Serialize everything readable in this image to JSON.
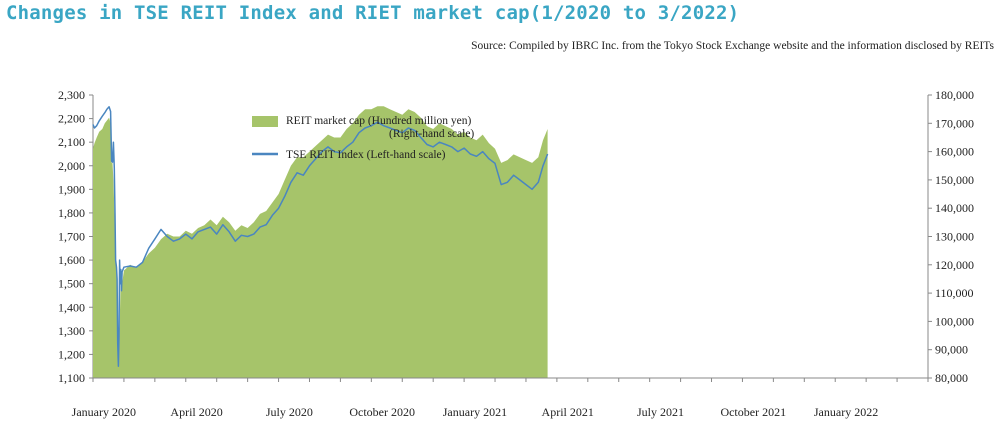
{
  "title": "Changes in TSE REIT Index and RIET market cap(1/2020 to 3/2022)",
  "source": "Source: Compiled by IBRC Inc. from the Tokyo Stock Exchange website and the information disclosed by REITs",
  "colors": {
    "area": "#a6c46a",
    "line": "#4a86c0",
    "title": "#3aa6c4"
  },
  "chart_data": {
    "type": "area",
    "x_labels": [
      "January 2020",
      "April 2020",
      "July 2020",
      "October 2020",
      "January 2021",
      "April 2021",
      "July 2021",
      "October 2021",
      "January 2022"
    ],
    "x_range": [
      "2020-01",
      "2022-03"
    ],
    "ylim_left": [
      1100,
      2300
    ],
    "ylim_right": [
      80000,
      180000
    ],
    "left_ticks": [
      "2,300",
      "2,200",
      "2,100",
      "2,000",
      "1,900",
      "1,800",
      "1,700",
      "1,600",
      "1,500",
      "1,400",
      "1,300",
      "1,200",
      "1,100"
    ],
    "right_ticks": [
      "180,000",
      "170,000",
      "160,000",
      "150,000",
      "140,000",
      "130,000",
      "120,000",
      "110,000",
      "100,000",
      "90,000",
      "80,000"
    ],
    "legend": {
      "area_label_line1": "REIT market cap (Hundred million yen)",
      "area_label_line2": "(Right-hand scale)",
      "line_label": "TSE REIT Index (Left-hand scale)"
    },
    "series": [
      {
        "name": "REIT market cap (Hundred million yen)",
        "axis": "right",
        "points": [
          [
            0.0,
            161000
          ],
          [
            0.05,
            163000
          ],
          [
            0.12,
            165000
          ],
          [
            0.2,
            167000
          ],
          [
            0.3,
            168000
          ],
          [
            0.38,
            170000
          ],
          [
            0.45,
            171000
          ],
          [
            0.52,
            172000
          ],
          [
            0.57,
            170000
          ],
          [
            0.6,
            156000
          ],
          [
            0.63,
            156000
          ],
          [
            0.66,
            150000
          ],
          [
            0.69,
            140000
          ],
          [
            0.73,
            124000
          ],
          [
            0.78,
            115000
          ],
          [
            0.82,
            90000
          ],
          [
            0.86,
            98000
          ],
          [
            0.9,
            116000
          ],
          [
            0.95,
            114000
          ],
          [
            1.0,
            118000
          ],
          [
            1.2,
            120000
          ],
          [
            1.4,
            119000
          ],
          [
            1.6,
            121000
          ],
          [
            1.8,
            124000
          ],
          [
            2.0,
            126000
          ],
          [
            2.2,
            129000
          ],
          [
            2.4,
            131000
          ],
          [
            2.6,
            130000
          ],
          [
            2.8,
            130000
          ],
          [
            3.0,
            132000
          ],
          [
            3.2,
            131000
          ],
          [
            3.4,
            133000
          ],
          [
            3.6,
            134000
          ],
          [
            3.8,
            136000
          ],
          [
            4.0,
            134000
          ],
          [
            4.2,
            137000
          ],
          [
            4.4,
            135000
          ],
          [
            4.6,
            132000
          ],
          [
            4.8,
            134000
          ],
          [
            5.0,
            133000
          ],
          [
            5.2,
            135000
          ],
          [
            5.4,
            138000
          ],
          [
            5.6,
            139000
          ],
          [
            5.8,
            142000
          ],
          [
            6.0,
            145000
          ],
          [
            6.2,
            150000
          ],
          [
            6.4,
            155000
          ],
          [
            6.6,
            158000
          ],
          [
            6.8,
            158000
          ],
          [
            7.0,
            160000
          ],
          [
            7.2,
            162000
          ],
          [
            7.4,
            164000
          ],
          [
            7.6,
            166000
          ],
          [
            7.8,
            165000
          ],
          [
            8.0,
            165000
          ],
          [
            8.2,
            168000
          ],
          [
            8.4,
            170000
          ],
          [
            8.6,
            173000
          ],
          [
            8.8,
            175000
          ],
          [
            9.0,
            175000
          ],
          [
            9.2,
            176000
          ],
          [
            9.4,
            176000
          ],
          [
            9.6,
            175000
          ],
          [
            9.8,
            174000
          ],
          [
            10.0,
            173000
          ],
          [
            10.2,
            175000
          ],
          [
            10.4,
            174000
          ],
          [
            10.6,
            172000
          ],
          [
            10.8,
            169000
          ],
          [
            11.0,
            168000
          ],
          [
            11.2,
            170000
          ],
          [
            11.4,
            169000
          ],
          [
            11.6,
            168000
          ],
          [
            11.8,
            166000
          ],
          [
            12.0,
            167000
          ],
          [
            12.2,
            165000
          ],
          [
            12.4,
            164000
          ],
          [
            12.6,
            166000
          ],
          [
            12.8,
            163000
          ],
          [
            13.0,
            161000
          ],
          [
            13.2,
            156000
          ],
          [
            13.4,
            157000
          ],
          [
            13.6,
            159000
          ],
          [
            13.8,
            158000
          ],
          [
            14.0,
            157000
          ],
          [
            14.2,
            156000
          ],
          [
            14.4,
            158000
          ],
          [
            14.55,
            164000
          ],
          [
            14.7,
            168000
          ]
        ]
      },
      {
        "name": "TSE REIT Index (Left-hand scale)",
        "axis": "left",
        "points": [
          [
            0.0,
            2175
          ],
          [
            0.05,
            2160
          ],
          [
            0.12,
            2170
          ],
          [
            0.2,
            2190
          ],
          [
            0.3,
            2210
          ],
          [
            0.38,
            2225
          ],
          [
            0.45,
            2240
          ],
          [
            0.52,
            2250
          ],
          [
            0.57,
            2230
          ],
          [
            0.6,
            2020
          ],
          [
            0.63,
            2015
          ],
          [
            0.66,
            2100
          ],
          [
            0.69,
            1990
          ],
          [
            0.71,
            1800
          ],
          [
            0.73,
            1600
          ],
          [
            0.76,
            1570
          ],
          [
            0.78,
            1520
          ],
          [
            0.8,
            1250
          ],
          [
            0.82,
            1150
          ],
          [
            0.84,
            1280
          ],
          [
            0.86,
            1600
          ],
          [
            0.88,
            1500
          ],
          [
            0.9,
            1560
          ],
          [
            0.92,
            1470
          ],
          [
            0.94,
            1550
          ],
          [
            1.0,
            1570
          ],
          [
            1.2,
            1575
          ],
          [
            1.4,
            1570
          ],
          [
            1.6,
            1590
          ],
          [
            1.8,
            1650
          ],
          [
            2.0,
            1690
          ],
          [
            2.2,
            1730
          ],
          [
            2.4,
            1700
          ],
          [
            2.6,
            1680
          ],
          [
            2.8,
            1690
          ],
          [
            3.0,
            1710
          ],
          [
            3.2,
            1690
          ],
          [
            3.4,
            1720
          ],
          [
            3.6,
            1730
          ],
          [
            3.8,
            1740
          ],
          [
            4.0,
            1710
          ],
          [
            4.2,
            1750
          ],
          [
            4.4,
            1720
          ],
          [
            4.6,
            1680
          ],
          [
            4.8,
            1705
          ],
          [
            5.0,
            1700
          ],
          [
            5.2,
            1710
          ],
          [
            5.4,
            1740
          ],
          [
            5.6,
            1750
          ],
          [
            5.8,
            1790
          ],
          [
            6.0,
            1820
          ],
          [
            6.2,
            1870
          ],
          [
            6.4,
            1930
          ],
          [
            6.6,
            1970
          ],
          [
            6.8,
            1960
          ],
          [
            7.0,
            2000
          ],
          [
            7.2,
            2030
          ],
          [
            7.4,
            2060
          ],
          [
            7.6,
            2080
          ],
          [
            7.8,
            2060
          ],
          [
            8.0,
            2055
          ],
          [
            8.2,
            2080
          ],
          [
            8.4,
            2100
          ],
          [
            8.6,
            2140
          ],
          [
            8.8,
            2160
          ],
          [
            9.0,
            2170
          ],
          [
            9.2,
            2185
          ],
          [
            9.4,
            2170
          ],
          [
            9.6,
            2160
          ],
          [
            9.8,
            2150
          ],
          [
            10.0,
            2140
          ],
          [
            10.2,
            2160
          ],
          [
            10.4,
            2150
          ],
          [
            10.6,
            2120
          ],
          [
            10.8,
            2090
          ],
          [
            11.0,
            2080
          ],
          [
            11.2,
            2100
          ],
          [
            11.4,
            2090
          ],
          [
            11.6,
            2080
          ],
          [
            11.8,
            2060
          ],
          [
            12.0,
            2075
          ],
          [
            12.2,
            2050
          ],
          [
            12.4,
            2040
          ],
          [
            12.6,
            2060
          ],
          [
            12.8,
            2030
          ],
          [
            13.0,
            2010
          ],
          [
            13.2,
            1920
          ],
          [
            13.4,
            1930
          ],
          [
            13.6,
            1960
          ],
          [
            13.8,
            1940
          ],
          [
            14.0,
            1920
          ],
          [
            14.2,
            1900
          ],
          [
            14.4,
            1930
          ],
          [
            14.55,
            2000
          ],
          [
            14.7,
            2050
          ]
        ]
      }
    ]
  }
}
